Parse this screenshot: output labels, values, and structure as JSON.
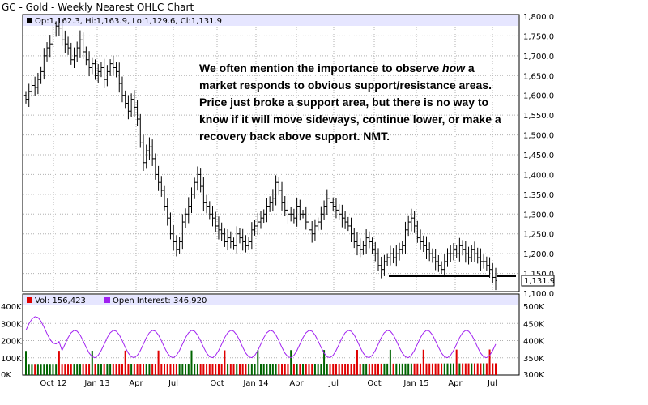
{
  "title": "GC - Gold - Weekly Nearest OHLC Chart",
  "price_panel": {
    "ohlc_readout": "Op:1,162.3, Hi:1,163.9, Lo:1,129.6, Cl:1,131.9",
    "last_price_label": "1,131.9",
    "annotation": {
      "before_italic": "We often mention the importance to observe ",
      "italic": "how",
      "after_italic": " a market responds to obvious support/resistance areas. Price just broke a support area, but there is no way to know if it will move sideways, continue lower, or make a recovery back above support.  NMT."
    }
  },
  "volume_panel": {
    "vol_readout": "Vol: 156,423",
    "oi_readout": "Open Interest: 346,920"
  },
  "colors": {
    "bar_up": "#006400",
    "bar_down": "#e00000",
    "ohlc_bar": "#000000",
    "open_interest_line": "#a020f0",
    "header_strip": "#e6e6ff",
    "grid": "#b0b0b0",
    "support_line": "#000000"
  },
  "chart_data": [
    {
      "type": "ohlc",
      "title": "GC - Gold - Weekly Nearest OHLC Chart",
      "ylim": [
        1100,
        1800
      ],
      "y_ticks": [
        "1,100.0",
        "1,150.0",
        "1,200.0",
        "1,250.0",
        "1,300.0",
        "1,350.0",
        "1,400.0",
        "1,450.0",
        "1,500.0",
        "1,550.0",
        "1,600.0",
        "1,650.0",
        "1,700.0",
        "1,750.0",
        "1,800.0"
      ],
      "x_tick_labels": [
        "Oct 12",
        "Jan 13",
        "Apr",
        "Jul",
        "Oct",
        "Jan 14",
        "Apr",
        "Jul",
        "Oct",
        "Jan 15",
        "Apr",
        "Jul"
      ],
      "grid": true,
      "last_close": 1131.9,
      "support_level": 1145,
      "weekly_closes": [
        1590,
        1610,
        1625,
        1620,
        1640,
        1660,
        1700,
        1720,
        1730,
        1760,
        1775,
        1770,
        1740,
        1730,
        1720,
        1690,
        1700,
        1720,
        1740,
        1710,
        1690,
        1670,
        1680,
        1650,
        1660,
        1670,
        1640,
        1660,
        1680,
        1670,
        1660,
        1630,
        1600,
        1580,
        1560,
        1590,
        1570,
        1540,
        1480,
        1430,
        1460,
        1470,
        1440,
        1400,
        1380,
        1360,
        1320,
        1290,
        1250,
        1230,
        1210,
        1230,
        1280,
        1300,
        1320,
        1350,
        1380,
        1400,
        1370,
        1330,
        1320,
        1300,
        1290,
        1270,
        1260,
        1250,
        1230,
        1240,
        1230,
        1220,
        1250,
        1240,
        1230,
        1220,
        1230,
        1260,
        1270,
        1280,
        1290,
        1300,
        1320,
        1330,
        1340,
        1380,
        1360,
        1330,
        1310,
        1300,
        1300,
        1290,
        1320,
        1300,
        1300,
        1280,
        1260,
        1250,
        1270,
        1280,
        1300,
        1320,
        1340,
        1330,
        1320,
        1310,
        1300,
        1290,
        1280,
        1270,
        1250,
        1230,
        1220,
        1210,
        1220,
        1240,
        1230,
        1210,
        1200,
        1170,
        1160,
        1180,
        1190,
        1200,
        1190,
        1200,
        1210,
        1220,
        1260,
        1280,
        1290,
        1270,
        1240,
        1230,
        1220,
        1210,
        1200,
        1190,
        1180,
        1170,
        1160,
        1180,
        1200,
        1200,
        1210,
        1200,
        1220,
        1210,
        1200,
        1190,
        1210,
        1200,
        1190,
        1180,
        1180,
        1170,
        1160,
        1140,
        1132
      ]
    },
    {
      "type": "bar",
      "title": "Vol / Open Interest",
      "ylim": [
        0,
        400000
      ],
      "y_ticks_left": [
        "0K",
        "100K",
        "200K",
        "300K",
        "400K"
      ],
      "y_ticks_right": [
        "300K",
        "350K",
        "400K",
        "450K",
        "500K"
      ],
      "series": [
        {
          "name": "Vol",
          "last": 156423
        },
        {
          "name": "Open Interest",
          "last": 346920
        }
      ]
    }
  ]
}
